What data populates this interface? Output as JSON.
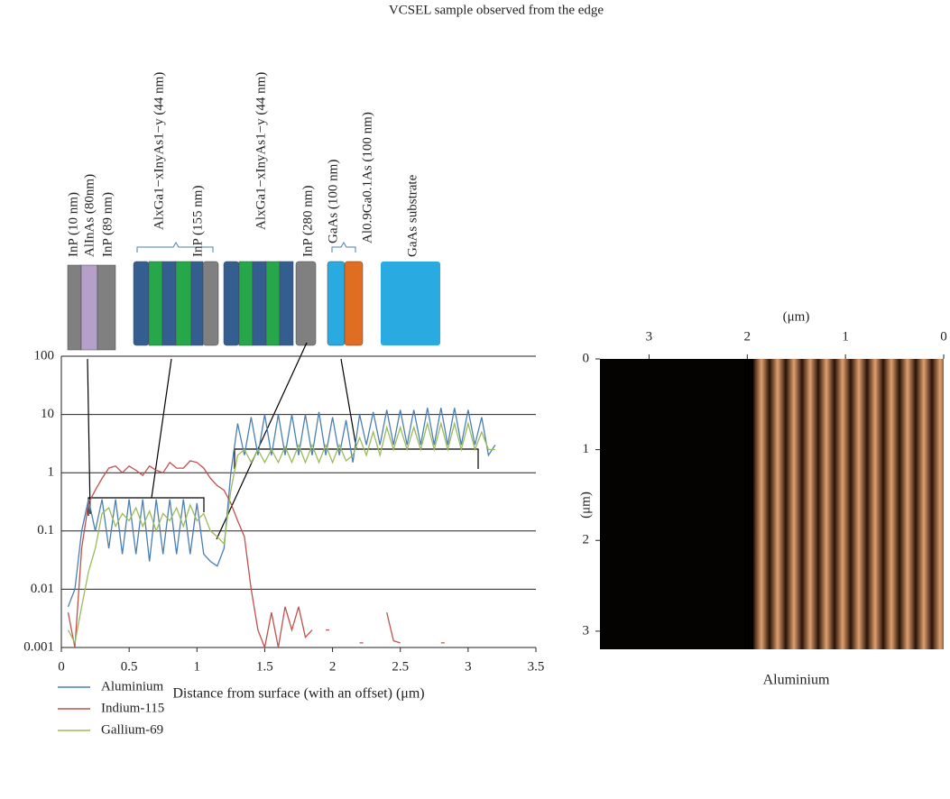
{
  "figure": {
    "title": "VCSEL sample observed from the edge",
    "layers": [
      "InP (10 nm)",
      "AlInAs (80nm)",
      "InP (89 nm)",
      "AlxGa1−xInyAs1−y (44 nm)",
      "InP (155 nm)",
      "AlxGa1−xInyAs1−y (44 nm)",
      "InP (280 nm)",
      "GaAs (100 nm)",
      "Al0.9Ga0.1As (100 nm)",
      "GaAs substrate"
    ]
  },
  "chart_data": [
    {
      "type": "line",
      "xlabel": "Distance from surface (with an offset) (μm)",
      "yscale": "log",
      "grid": true,
      "xlim": [
        0,
        3.5
      ],
      "xticks": [
        0,
        0.5,
        1,
        1.5,
        2,
        2.5,
        3,
        3.5
      ],
      "ylim": [
        0.001,
        100
      ],
      "yticks": [
        0.001,
        0.01,
        0.1,
        1,
        10,
        100
      ],
      "x": [
        0.05,
        0.1,
        0.15,
        0.2,
        0.25,
        0.3,
        0.35,
        0.4,
        0.45,
        0.5,
        0.55,
        0.6,
        0.65,
        0.7,
        0.75,
        0.8,
        0.85,
        0.9,
        0.95,
        1.0,
        1.05,
        1.1,
        1.15,
        1.2,
        1.25,
        1.3,
        1.35,
        1.4,
        1.45,
        1.5,
        1.55,
        1.6,
        1.65,
        1.7,
        1.75,
        1.8,
        1.85,
        1.9,
        1.95,
        2.0,
        2.05,
        2.1,
        2.15,
        2.2,
        2.25,
        2.3,
        2.35,
        2.4,
        2.45,
        2.5,
        2.55,
        2.6,
        2.65,
        2.7,
        2.75,
        2.8,
        2.85,
        2.9,
        2.95,
        3.0,
        3.05,
        3.1,
        3.15,
        3.2
      ],
      "series": [
        {
          "name": "Aluminium",
          "color": "#4a7fb5",
          "values": [
            0.005,
            0.01,
            0.1,
            0.35,
            0.1,
            0.35,
            0.05,
            0.35,
            0.04,
            0.35,
            0.04,
            0.35,
            0.03,
            0.35,
            0.04,
            0.35,
            0.04,
            0.35,
            0.04,
            0.3,
            0.04,
            0.03,
            0.025,
            0.05,
            1,
            7,
            2,
            9,
            2,
            10,
            2,
            10,
            2,
            10,
            2,
            10,
            2,
            11,
            2,
            9,
            2,
            8,
            1.5,
            10,
            3,
            11,
            3,
            12,
            3,
            12,
            3,
            12,
            3,
            13,
            3,
            13,
            3,
            13,
            3,
            12,
            3,
            9,
            2,
            3
          ]
        },
        {
          "name": "Indium-115",
          "color": "#c0504d",
          "values": [
            0.004,
            0.001,
            0.05,
            0.3,
            0.5,
            0.8,
            1.2,
            1.3,
            1.0,
            1.3,
            1.1,
            0.9,
            1.3,
            1.1,
            1.0,
            1.5,
            1.2,
            1.2,
            1.6,
            1.5,
            1.2,
            0.8,
            0.6,
            0.5,
            0.3,
            0.15,
            0.08,
            0.01,
            0.002,
            0.001,
            0.004,
            0.001,
            0.005,
            0.002,
            0.005,
            0.0015,
            0.002,
            null,
            0.002,
            null,
            null,
            null,
            null,
            0.0012,
            null,
            null,
            null,
            0.004,
            0.0013,
            0.0012,
            null,
            null,
            null,
            null,
            null,
            0.0012,
            null,
            null,
            null,
            null,
            null,
            null,
            null,
            null
          ]
        },
        {
          "name": "Gallium-69",
          "color": "#9bbb59",
          "values": [
            0.002,
            0.0012,
            0.005,
            0.02,
            0.05,
            0.2,
            0.25,
            0.12,
            0.2,
            0.15,
            0.25,
            0.12,
            0.22,
            0.1,
            0.2,
            0.15,
            0.25,
            0.12,
            0.28,
            0.15,
            0.2,
            0.1,
            0.08,
            0.06,
            0.5,
            2,
            2.5,
            1.5,
            2.5,
            1.5,
            2.5,
            1.5,
            2.8,
            1.5,
            3,
            1.5,
            3,
            1.5,
            3,
            1.5,
            3,
            1.6,
            2,
            4,
            2,
            5,
            2,
            6,
            2.5,
            6,
            2.5,
            6,
            2.5,
            7,
            2.5,
            7,
            2.5,
            7,
            2.5,
            7,
            2.5,
            5,
            2.5,
            2.5
          ]
        }
      ]
    },
    {
      "type": "image",
      "xlabel": "(μm)",
      "ylabel": "(μm)",
      "caption": "Aluminium",
      "xlim": [
        3.5,
        0
      ],
      "xticks": [
        3,
        2,
        1,
        0
      ],
      "ylim": [
        0,
        3.2
      ],
      "yticks": [
        0,
        1,
        2,
        3
      ]
    }
  ]
}
